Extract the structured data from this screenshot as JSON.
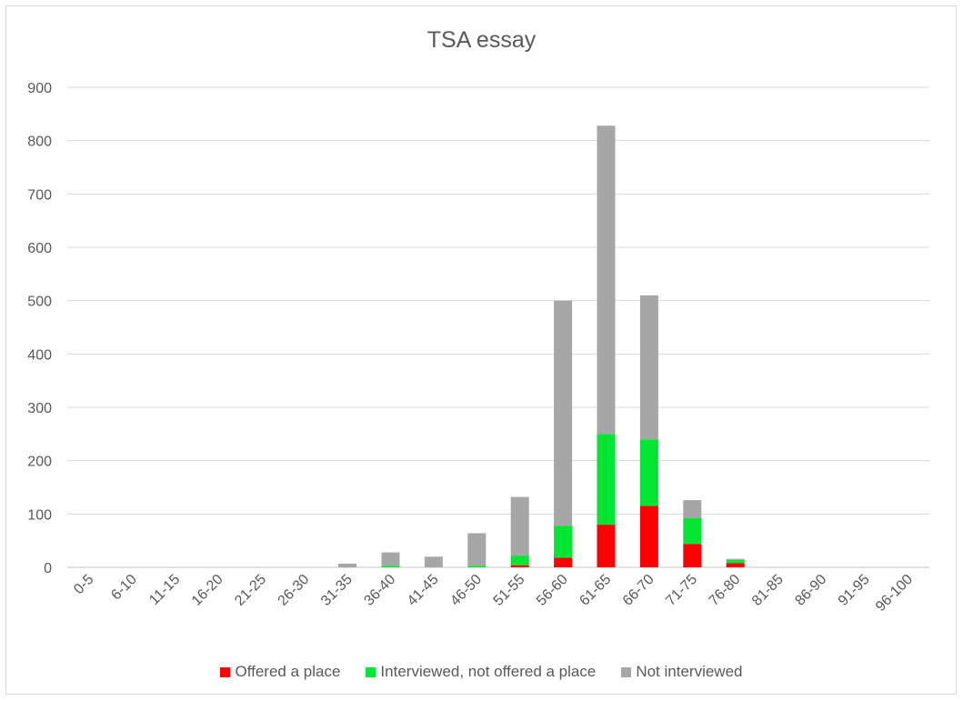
{
  "chart_data": {
    "type": "bar",
    "stacked": true,
    "title": "TSA essay",
    "xlabel": "",
    "ylabel": "",
    "ylim": [
      0,
      900
    ],
    "yticks": [
      "0",
      "100",
      "200",
      "300",
      "400",
      "500",
      "600",
      "700",
      "800",
      "900"
    ],
    "grid": true,
    "legend_position": "bottom",
    "categories": [
      "0-5",
      "6-10",
      "11-15",
      "16-20",
      "21-25",
      "26-30",
      "31-35",
      "36-40",
      "41-45",
      "46-50",
      "51-55",
      "56-60",
      "61-65",
      "66-70",
      "71-75",
      "76-80",
      "81-85",
      "86-90",
      "91-95",
      "96-100"
    ],
    "series": [
      {
        "name": "Offered a place",
        "color": "#ff0000",
        "values": [
          0,
          0,
          0,
          0,
          0,
          0,
          0,
          0,
          0,
          0,
          4,
          18,
          80,
          115,
          44,
          8,
          0,
          0,
          0,
          0
        ]
      },
      {
        "name": "Interviewed, not offered a place",
        "color": "#00e633",
        "values": [
          0,
          0,
          0,
          0,
          0,
          0,
          0,
          3,
          0,
          3,
          18,
          60,
          170,
          125,
          48,
          6,
          0,
          0,
          0,
          0
        ]
      },
      {
        "name": "Not interviewed",
        "color": "#a6a6a6",
        "values": [
          0,
          0,
          0,
          0,
          0,
          0,
          7,
          25,
          20,
          61,
          110,
          422,
          578,
          270,
          34,
          2,
          0,
          0,
          0,
          0
        ]
      }
    ]
  }
}
